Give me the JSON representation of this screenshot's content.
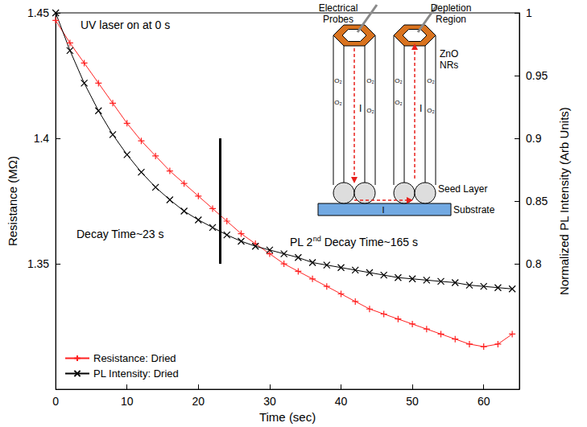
{
  "chart_data": {
    "type": "line",
    "xlabel": "Time (sec)",
    "ylabel": "Resistance (MΩ)",
    "y2label": "Normalized PL Intensity (Arb Units)",
    "x": [
      0,
      2,
      4,
      6,
      8,
      10,
      12,
      14,
      16,
      18,
      20,
      22,
      24,
      26,
      28,
      30,
      32,
      34,
      36,
      38,
      40,
      42,
      44,
      46,
      48,
      50,
      52,
      54,
      56,
      58,
      60,
      62,
      64
    ],
    "series": [
      {
        "name": "Resistance: Dried",
        "color": "#ff2020",
        "marker": "plus",
        "line_style": "solid",
        "values": [
          1.447,
          1.438,
          1.43,
          1.422,
          1.414,
          1.406,
          1.399,
          1.393,
          1.387,
          1.382,
          1.377,
          1.372,
          1.367,
          1.362,
          1.358,
          1.354,
          1.35,
          1.347,
          1.344,
          1.341,
          1.338,
          1.335,
          1.332,
          1.33,
          1.328,
          1.326,
          1.324,
          1.322,
          1.32,
          1.318,
          1.317,
          1.318,
          1.322
        ]
      },
      {
        "name": "PL Intensity: Dried",
        "color": "#000000",
        "marker": "cross",
        "line_style": "solid",
        "axis": "y2",
        "values": [
          1.0,
          0.97,
          0.944,
          0.922,
          0.903,
          0.887,
          0.873,
          0.861,
          0.851,
          0.842,
          0.835,
          0.829,
          0.823,
          0.818,
          0.814,
          0.811,
          0.808,
          0.805,
          0.801,
          0.799,
          0.797,
          0.795,
          0.793,
          0.791,
          0.789,
          0.788,
          0.787,
          0.786,
          0.785,
          0.783,
          0.782,
          0.781,
          0.78
        ]
      }
    ],
    "xlim": [
      0,
      65
    ],
    "xticks": [
      0,
      10,
      20,
      30,
      40,
      50,
      60
    ],
    "ylim": [
      1.3,
      1.45
    ],
    "yticks": [
      1.35,
      1.4,
      1.45
    ],
    "y2lim": [
      0.7,
      1.0
    ],
    "y2ticks": [
      0.8,
      0.85,
      0.9,
      0.95,
      1
    ],
    "decay_line": {
      "x": 23,
      "y": [
        1.35,
        1.4
      ]
    },
    "annotations": [
      "UV laser on at 0 s",
      "Decay Time~23 s",
      "PL 2nd Decay Time~165 s"
    ],
    "inset": {
      "probe_label": "Electrical Probes",
      "depletion_label": "Depletion Region",
      "rod_label": "ZnO NRs",
      "gas_label": "O₂",
      "current_label": "I",
      "seed_label": "Seed Layer",
      "substrate_label": "Substrate"
    },
    "grid": false,
    "legend": "lower left"
  }
}
